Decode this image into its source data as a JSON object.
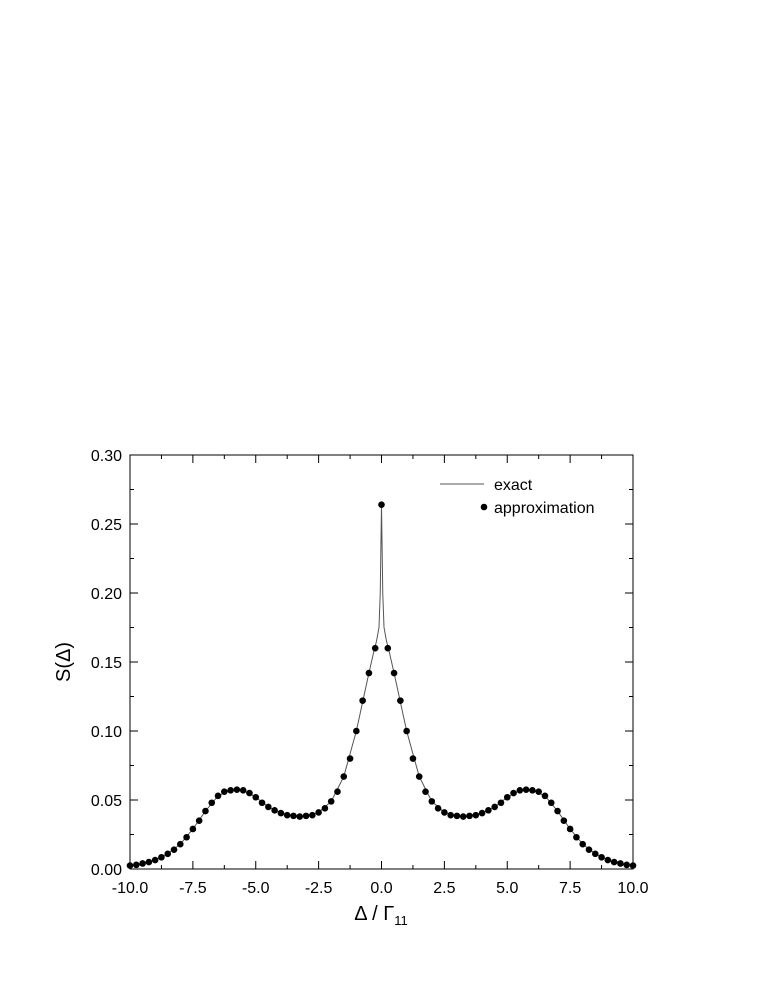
{
  "chart_data": {
    "type": "scatter",
    "xlabel": "Δ / Γ",
    "xlabel_subscript": "11",
    "ylabel": "S(Δ)",
    "xlim": [
      -10,
      10
    ],
    "ylim": [
      0,
      0.3
    ],
    "x_ticks": [
      -10,
      -7.5,
      -5,
      -2.5,
      0,
      2.5,
      5,
      7.5,
      10
    ],
    "x_tick_labels": [
      "-10.0",
      "-7.5",
      "-5.0",
      "-2.5",
      "0.0",
      "2.5",
      "5.0",
      "7.5",
      "10.0"
    ],
    "y_ticks": [
      0,
      0.05,
      0.1,
      0.15,
      0.2,
      0.25,
      0.3
    ],
    "y_tick_labels": [
      "0.00",
      "0.05",
      "0.10",
      "0.15",
      "0.20",
      "0.25",
      "0.30"
    ],
    "grid": false,
    "legend_position": "top-right",
    "series": [
      {
        "name": "exact",
        "style": "line",
        "color": "#555555",
        "x": [
          -10,
          -9.5,
          -9,
          -8.5,
          -8,
          -7.5,
          -7,
          -6.5,
          -6,
          -5.75,
          -5.5,
          -5,
          -4.5,
          -4,
          -3.5,
          -3.25,
          -3,
          -2.5,
          -2,
          -1.5,
          -1,
          -0.5,
          -0.3,
          -0.2,
          -0.1,
          -0.05,
          0,
          0.05,
          0.1,
          0.2,
          0.3,
          0.5,
          1,
          1.5,
          2,
          2.5,
          3,
          3.25,
          3.5,
          4,
          4.5,
          5,
          5.5,
          5.75,
          6,
          6.5,
          7,
          7.5,
          8,
          8.5,
          9,
          9.5,
          10
        ],
        "y": [
          0.0025,
          0.004,
          0.0065,
          0.011,
          0.018,
          0.029,
          0.042,
          0.053,
          0.057,
          0.0575,
          0.057,
          0.052,
          0.045,
          0.0405,
          0.0385,
          0.038,
          0.0385,
          0.041,
          0.049,
          0.067,
          0.1,
          0.142,
          0.158,
          0.165,
          0.175,
          0.2,
          0.264,
          0.2,
          0.175,
          0.165,
          0.158,
          0.142,
          0.1,
          0.067,
          0.049,
          0.041,
          0.0385,
          0.038,
          0.0385,
          0.0405,
          0.045,
          0.052,
          0.057,
          0.0575,
          0.057,
          0.053,
          0.042,
          0.029,
          0.018,
          0.011,
          0.0065,
          0.004,
          0.0025
        ]
      },
      {
        "name": "approximation",
        "style": "markers",
        "color": "#000000",
        "x": [
          -10,
          -9.75,
          -9.5,
          -9.25,
          -9,
          -8.75,
          -8.5,
          -8.25,
          -8,
          -7.75,
          -7.5,
          -7.25,
          -7,
          -6.75,
          -6.5,
          -6.25,
          -6,
          -5.75,
          -5.5,
          -5.25,
          -5,
          -4.75,
          -4.5,
          -4.25,
          -4,
          -3.75,
          -3.5,
          -3.25,
          -3,
          -2.75,
          -2.5,
          -2.25,
          -2,
          -1.75,
          -1.5,
          -1.25,
          -1,
          -0.75,
          -0.5,
          -0.25,
          0,
          0.25,
          0.5,
          0.75,
          1,
          1.25,
          1.5,
          1.75,
          2,
          2.25,
          2.5,
          2.75,
          3,
          3.25,
          3.5,
          3.75,
          4,
          4.25,
          4.5,
          4.75,
          5,
          5.25,
          5.5,
          5.75,
          6,
          6.25,
          6.5,
          6.75,
          7,
          7.25,
          7.5,
          7.75,
          8,
          8.25,
          8.5,
          8.75,
          9,
          9.25,
          9.5,
          9.75,
          10
        ],
        "y": [
          0.0025,
          0.003,
          0.004,
          0.005,
          0.0065,
          0.0085,
          0.011,
          0.014,
          0.018,
          0.023,
          0.029,
          0.035,
          0.042,
          0.048,
          0.053,
          0.056,
          0.057,
          0.0575,
          0.057,
          0.055,
          0.052,
          0.048,
          0.045,
          0.0425,
          0.0405,
          0.039,
          0.0385,
          0.038,
          0.0385,
          0.039,
          0.041,
          0.044,
          0.049,
          0.056,
          0.067,
          0.08,
          0.1,
          0.122,
          0.142,
          0.16,
          0.264,
          0.16,
          0.142,
          0.122,
          0.1,
          0.08,
          0.067,
          0.056,
          0.049,
          0.044,
          0.041,
          0.039,
          0.0385,
          0.038,
          0.0385,
          0.039,
          0.0405,
          0.0425,
          0.045,
          0.048,
          0.052,
          0.055,
          0.057,
          0.0575,
          0.057,
          0.056,
          0.053,
          0.048,
          0.042,
          0.035,
          0.029,
          0.023,
          0.018,
          0.014,
          0.011,
          0.0085,
          0.0065,
          0.005,
          0.004,
          0.003,
          0.0025
        ]
      }
    ]
  }
}
